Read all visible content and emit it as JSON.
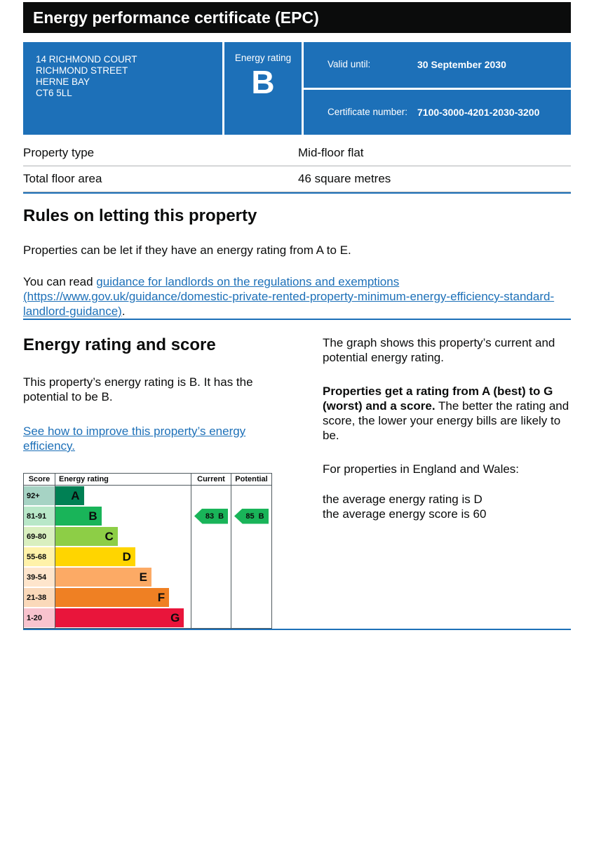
{
  "header": {
    "title": "Energy performance certificate (EPC)"
  },
  "summary": {
    "address_lines": [
      "14 RICHMOND COURT",
      "RICHMOND STREET",
      "HERNE BAY",
      "CT6 5LL"
    ],
    "energy_rating_label": "Energy rating",
    "energy_rating_value": "B",
    "valid_until_label": "Valid until:",
    "valid_until_value": "30 September 2030",
    "certificate_number_label": "Certificate number:",
    "certificate_number_value": "7100-3000-4201-2030-3200"
  },
  "property_details": {
    "rows": [
      {
        "label": "Property type",
        "value": "Mid-floor flat"
      },
      {
        "label": "Total floor area",
        "value": "46 square metres"
      }
    ]
  },
  "rules": {
    "heading": "Rules on letting this property",
    "para1": "Properties can be let if they have an energy rating from A to E.",
    "para2_prefix": "You can read ",
    "para2_link": "guidance for landlords on the regulations and exemptions (https://www.gov.uk/guidance/domestic-private-rented-property-minimum-energy-efficiency-standard-landlord-guidance)",
    "para2_suffix": "."
  },
  "rating_section": {
    "heading": "Energy rating and score",
    "intro": "This property’s energy rating is B. It has the potential to be B.",
    "improve_link": "See how to improve this property’s energy efficiency.",
    "graph_para": "The graph shows this property’s current and potential energy rating.",
    "ratings_bold": "Properties get a rating from A (best) to G (worst) and a score.",
    "ratings_rest": " The better the rating and score, the lower your energy bills are likely to be.",
    "region_para": "For properties in England and Wales:",
    "average_rating_line": "the average energy rating is D",
    "average_score_line": "the average energy score is 60"
  },
  "chart_data": {
    "type": "epc-rating-bands",
    "headers": [
      "Score",
      "Energy rating",
      "Current",
      "Potential"
    ],
    "bands": [
      {
        "score": "92+",
        "letter": "A",
        "color": "#008054",
        "tint": "#a6d3c4",
        "width_pct": 21
      },
      {
        "score": "81-91",
        "letter": "B",
        "color": "#19b459",
        "tint": "#b8e7c8",
        "width_pct": 34
      },
      {
        "score": "69-80",
        "letter": "C",
        "color": "#8dce46",
        "tint": "#d9efbf",
        "width_pct": 46
      },
      {
        "score": "55-68",
        "letter": "D",
        "color": "#ffd500",
        "tint": "#fff2a9",
        "width_pct": 59
      },
      {
        "score": "39-54",
        "letter": "E",
        "color": "#fcaa65",
        "tint": "#fee5cc",
        "width_pct": 71
      },
      {
        "score": "21-38",
        "letter": "F",
        "color": "#ef8023",
        "tint": "#fad9ba",
        "width_pct": 84
      },
      {
        "score": "1-20",
        "letter": "G",
        "color": "#e9153b",
        "tint": "#f8c3ce",
        "width_pct": 95
      }
    ],
    "current": {
      "score": 83,
      "letter": "B",
      "band_index": 1,
      "color": "#19b459"
    },
    "potential": {
      "score": 85,
      "letter": "B",
      "band_index": 1,
      "color": "#19b459"
    }
  },
  "colors": {
    "header_bg": "#0b0c0c",
    "summary_bg": "#1d70b8",
    "link": "#1d70b8",
    "section_divider": "#1d70b8"
  }
}
